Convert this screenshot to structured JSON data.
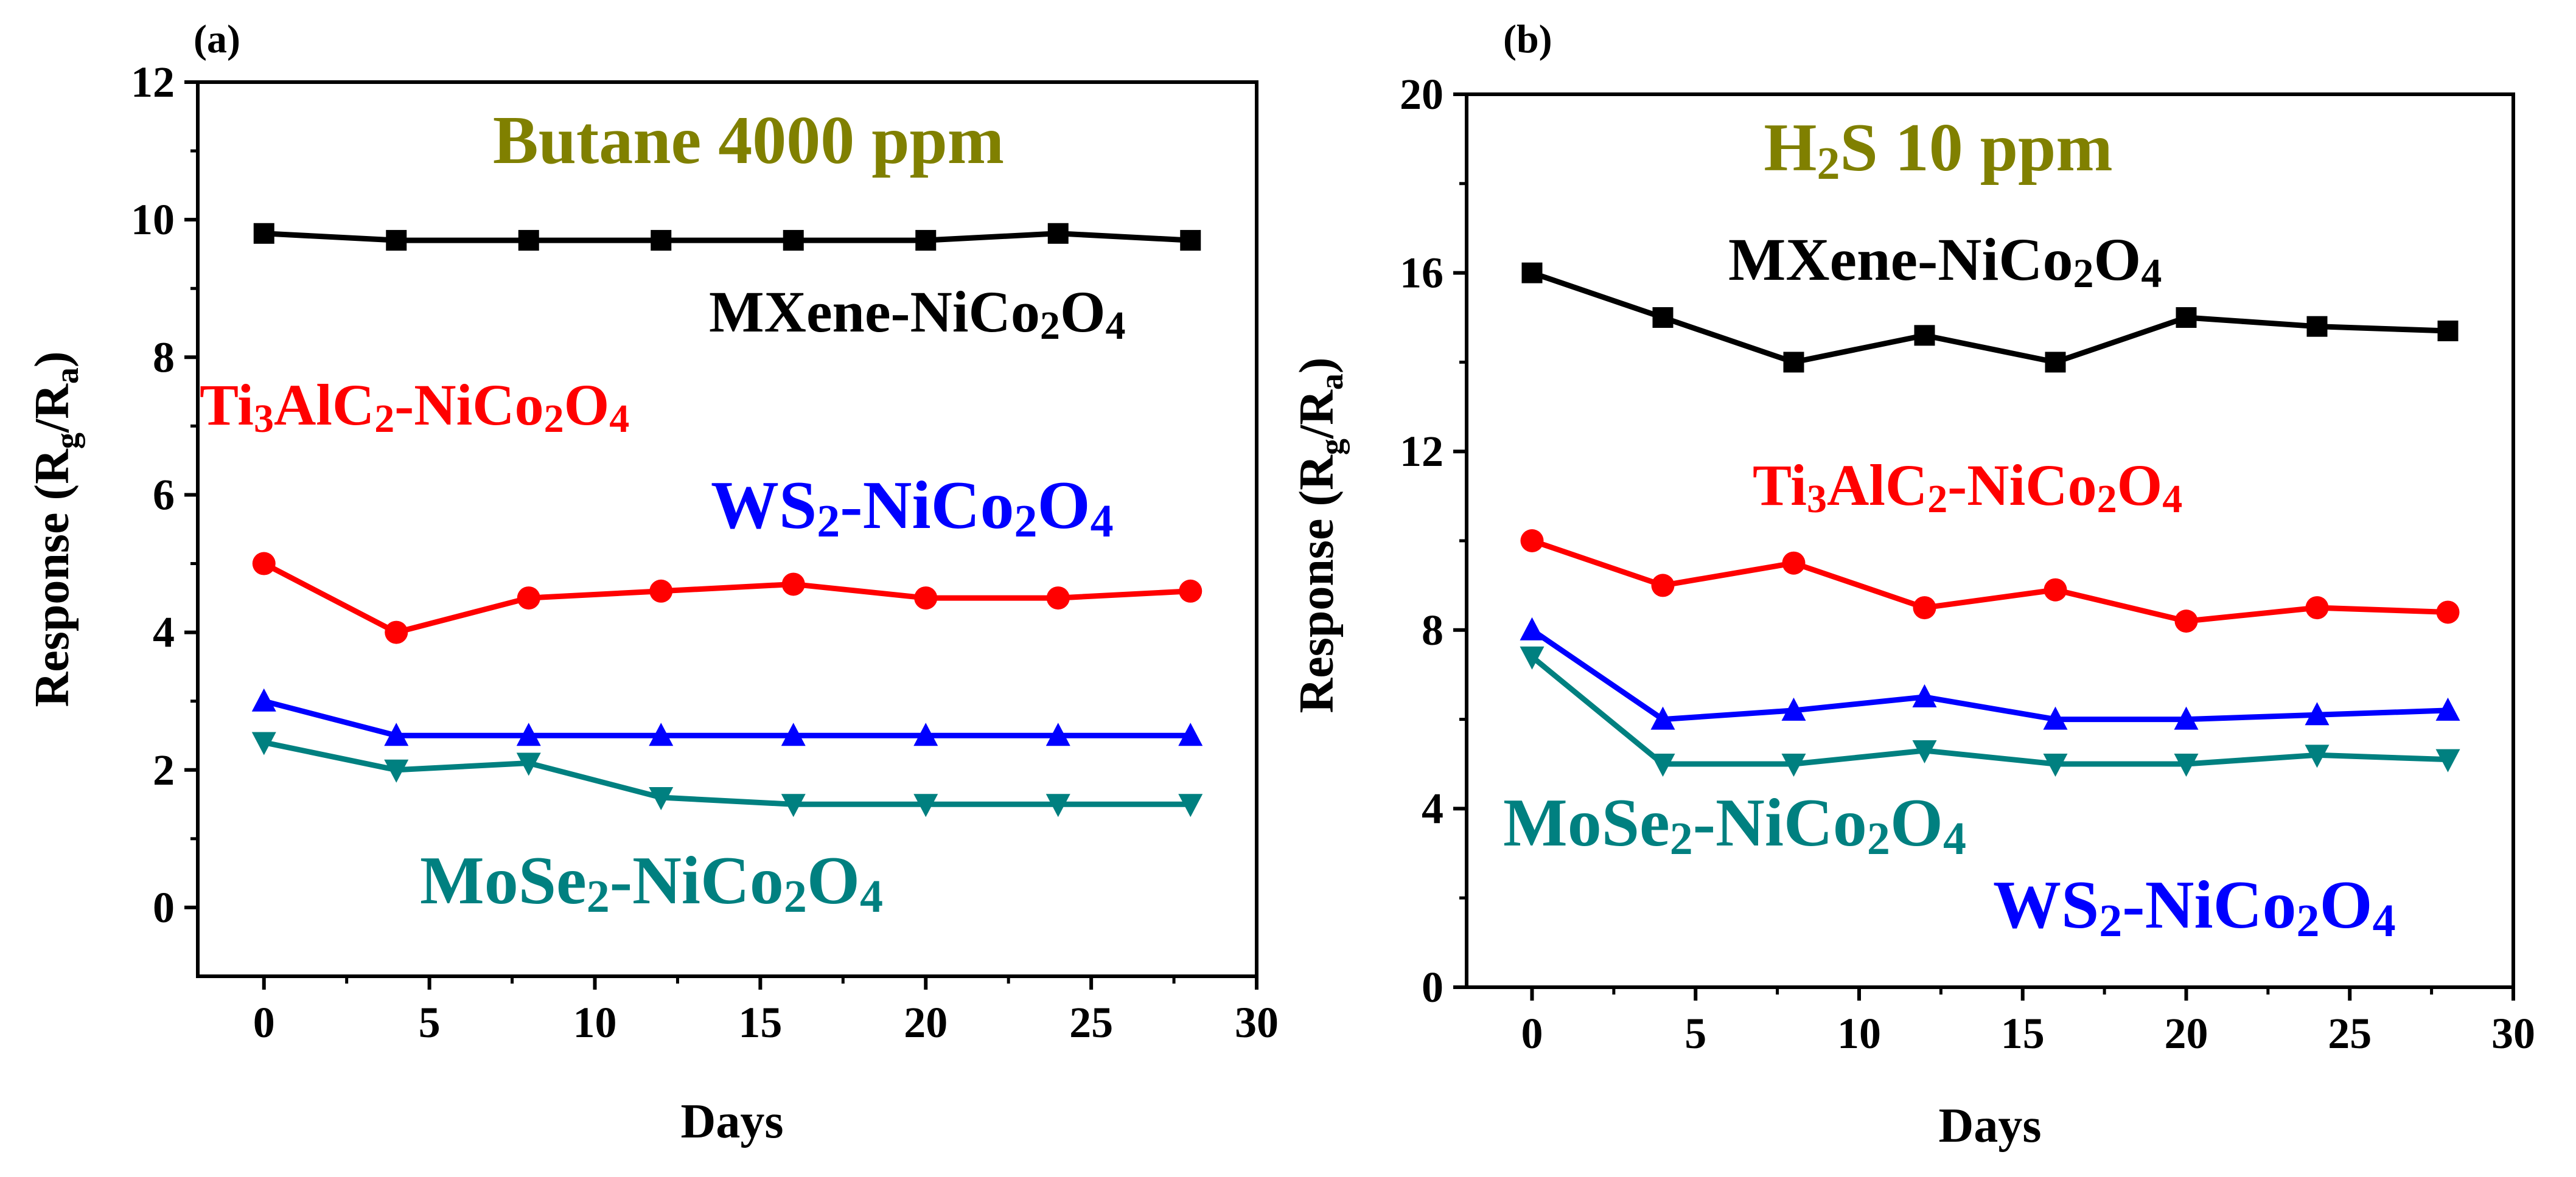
{
  "chart_data": [
    {
      "type": "line",
      "panel_label": "(a)",
      "title": "Butane 4000 ppm",
      "xlabel": "Days",
      "ylabel": "Response (R",
      "ylabel_sub_g": "g",
      "ylabel_mid": "/R",
      "ylabel_sub_a": "a",
      "ylabel_end": ")",
      "xlim": [
        -2,
        30
      ],
      "ylim": [
        -1,
        12
      ],
      "x_ticks": [
        0,
        5,
        10,
        15,
        20,
        25,
        30
      ],
      "x_tick_labels": [
        "0",
        "5",
        "10",
        "15",
        "20",
        "25",
        "30"
      ],
      "y_ticks": [
        0,
        2,
        4,
        6,
        8,
        10,
        12
      ],
      "y_tick_labels": [
        "0",
        "2",
        "4",
        "6",
        "8",
        "10",
        "12"
      ],
      "x": [
        0,
        4,
        8,
        12,
        16,
        20,
        24,
        28
      ],
      "series": [
        {
          "name": "MXene-NiCo2O4",
          "color": "#000000",
          "marker": "square",
          "values": [
            9.8,
            9.7,
            9.7,
            9.7,
            9.7,
            9.7,
            9.8,
            9.7
          ]
        },
        {
          "name": "Ti3AlC2-NiCo2O4",
          "color": "#ff0000",
          "marker": "circle",
          "values": [
            5.0,
            4.0,
            4.5,
            4.6,
            4.7,
            4.5,
            4.5,
            4.6
          ]
        },
        {
          "name": "WS2-NiCo2O4",
          "color": "#0000ff",
          "marker": "triangle-up",
          "values": [
            3.0,
            2.5,
            2.5,
            2.5,
            2.5,
            2.5,
            2.5,
            2.5
          ]
        },
        {
          "name": "MoSe2-NiCo2O4",
          "color": "#008080",
          "marker": "triangle-down",
          "values": [
            2.4,
            2.0,
            2.1,
            1.6,
            1.5,
            1.5,
            1.5,
            1.5
          ]
        }
      ],
      "annotations": [
        {
          "series": "MXene-NiCo2O4",
          "pre": "MXene-NiCo",
          "sub1": "2",
          "mid": "O",
          "sub2": "4",
          "color": "#000000"
        },
        {
          "series": "Ti3AlC2-NiCo2O4",
          "pre": "Ti",
          "sub0": "3",
          "a": "AlC",
          "sub1": "2",
          "b": "-NiCo",
          "sub2": "2",
          "c": "O",
          "sub3": "4",
          "color": "#ff0000"
        },
        {
          "series": "WS2-NiCo2O4",
          "pre": "WS",
          "sub0": "2",
          "a": "-NiCo",
          "sub1": "2",
          "b": "O",
          "sub2": "4",
          "color": "#0000ff"
        },
        {
          "series": "MoSe2-NiCo2O4",
          "pre": "MoSe",
          "sub0": "2",
          "a": "-NiCo",
          "sub1": "2",
          "b": "O",
          "sub2": "4",
          "color": "#008080"
        }
      ],
      "title_color": "#808000"
    },
    {
      "type": "line",
      "panel_label": "(b)",
      "title_pre": "H",
      "title_sub": "2",
      "title_post": "S 10 ppm",
      "xlabel": "Days",
      "ylabel": "Response (R",
      "ylabel_sub_g": "g",
      "ylabel_mid": "/R",
      "ylabel_sub_a": "a",
      "ylabel_end": ")",
      "xlim": [
        -2,
        30
      ],
      "ylim": [
        0,
        20
      ],
      "x_ticks": [
        0,
        5,
        10,
        15,
        20,
        25,
        30
      ],
      "x_tick_labels": [
        "0",
        "5",
        "10",
        "15",
        "20",
        "25",
        "30"
      ],
      "y_ticks": [
        0,
        4,
        8,
        12,
        16,
        20
      ],
      "y_tick_labels": [
        "0",
        "4",
        "8",
        "12",
        "16",
        "20"
      ],
      "x": [
        0,
        4,
        8,
        12,
        16,
        20,
        24,
        28
      ],
      "series": [
        {
          "name": "MXene-NiCo2O4",
          "color": "#000000",
          "marker": "square",
          "values": [
            16.0,
            15.0,
            14.0,
            14.6,
            14.0,
            15.0,
            14.8,
            14.7
          ]
        },
        {
          "name": "Ti3AlC2-NiCo2O4",
          "color": "#ff0000",
          "marker": "circle",
          "values": [
            10.0,
            9.0,
            9.5,
            8.5,
            8.9,
            8.2,
            8.5,
            8.4
          ]
        },
        {
          "name": "WS2-NiCo2O4",
          "color": "#0000ff",
          "marker": "triangle-up",
          "values": [
            8.0,
            6.0,
            6.2,
            6.5,
            6.0,
            6.0,
            6.1,
            6.2
          ]
        },
        {
          "name": "MoSe2-NiCo2O4",
          "color": "#008080",
          "marker": "triangle-down",
          "values": [
            7.4,
            5.0,
            5.0,
            5.3,
            5.0,
            5.0,
            5.2,
            5.1
          ]
        }
      ],
      "annotations": [
        {
          "series": "MXene-NiCo2O4",
          "pre": "MXene-NiCo",
          "sub1": "2",
          "mid": "O",
          "sub2": "4",
          "color": "#000000"
        },
        {
          "series": "Ti3AlC2-NiCo2O4",
          "pre": "Ti",
          "sub0": "3",
          "a": "AlC",
          "sub1": "2",
          "b": "-NiCo",
          "sub2": "2",
          "c": "O",
          "sub3": "4",
          "color": "#ff0000"
        },
        {
          "series": "MoSe2-NiCo2O4",
          "pre": "MoSe",
          "sub0": "2",
          "a": "-NiCo",
          "sub1": "2",
          "b": "O",
          "sub2": "4",
          "color": "#008080"
        },
        {
          "series": "WS2-NiCo2O4",
          "pre": "WS",
          "sub0": "2",
          "a": "-NiCo",
          "sub1": "2",
          "b": "O",
          "sub2": "4",
          "color": "#0000ff"
        }
      ],
      "title_color": "#808000"
    }
  ]
}
